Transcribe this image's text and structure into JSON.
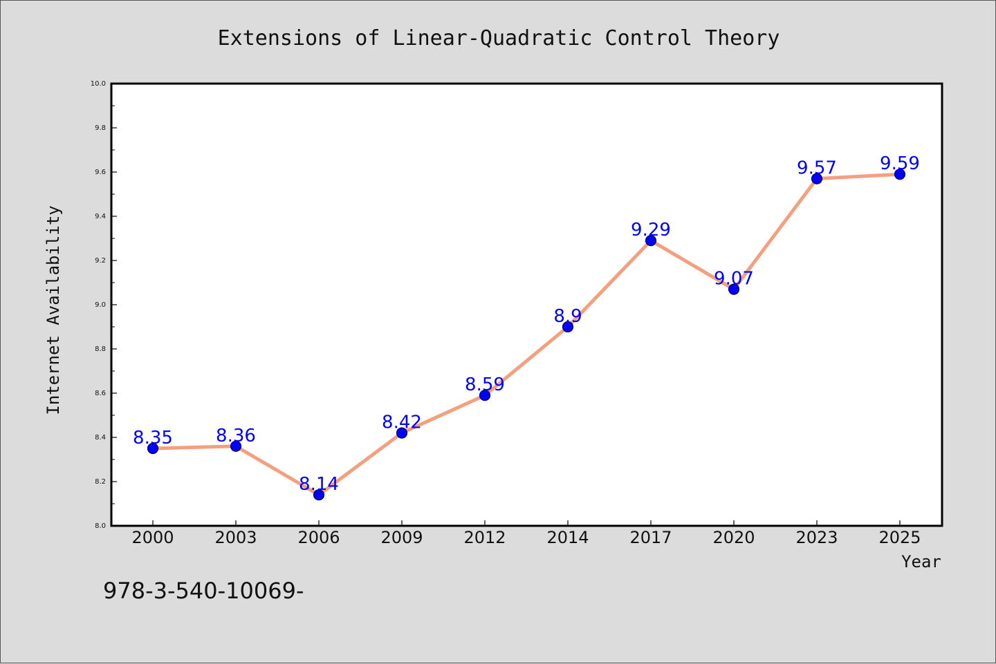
{
  "chart_data": {
    "type": "line",
    "title": "Extensions of Linear-Quadratic Control Theory",
    "xlabel": "Year",
    "ylabel": "Internet Availability",
    "categories": [
      "2000",
      "2003",
      "2006",
      "2009",
      "2012",
      "2014",
      "2017",
      "2020",
      "2023",
      "2025"
    ],
    "values": [
      8.35,
      8.36,
      8.14,
      8.42,
      8.59,
      8.9,
      9.29,
      9.07,
      9.57,
      9.59
    ],
    "data_labels": [
      "8.35",
      "8.36",
      "8.14",
      "8.42",
      "8.59",
      "8.9",
      "9.29",
      "9.07",
      "9.57",
      "9.59"
    ],
    "ylim": [
      8.0,
      10.0
    ],
    "yticks": [
      "8.0",
      "8.2",
      "8.4",
      "8.6",
      "8.8",
      "9.0",
      "9.2",
      "9.4",
      "9.6",
      "9.8",
      "10.0"
    ],
    "grid": false,
    "legend": "none",
    "colors": {
      "line": "#f4a07e",
      "marker": "#0000ff",
      "data_label": "#0000ff",
      "plot_background": "#ffffff",
      "figure_background": "#dcdcdc"
    }
  },
  "footnote": "978-3-540-10069-"
}
